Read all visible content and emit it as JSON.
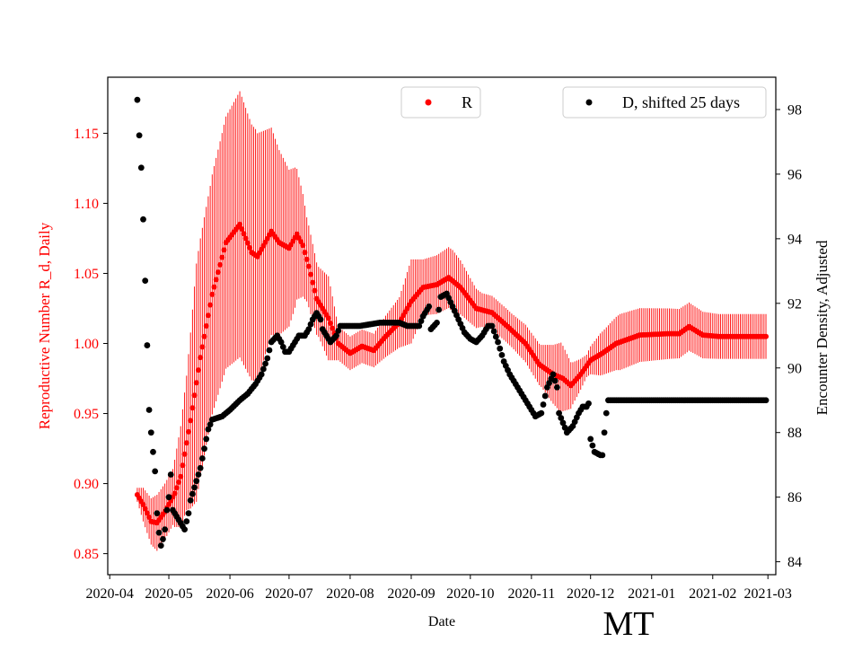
{
  "chart_data": {
    "type": "scatter",
    "state_label": "MT",
    "xlabel": "Date",
    "ylabel_left": "Reproductive Number R_d, Daily",
    "ylabel_right": "Encounter Density, Adjusted",
    "x_range": [
      "2020-03-31",
      "2021-03-05"
    ],
    "ylim_left": [
      0.835,
      1.19
    ],
    "ylim_right": [
      83.6,
      99.0
    ],
    "x_ticks": [
      "2020-04",
      "2020-05",
      "2020-06",
      "2020-07",
      "2020-08",
      "2020-09",
      "2020-10",
      "2020-11",
      "2020-12",
      "2021-01",
      "2021-02",
      "2021-03"
    ],
    "y_ticks_left": [
      "0.85",
      "0.90",
      "0.95",
      "1.00",
      "1.05",
      "1.10",
      "1.15"
    ],
    "y_ticks_right": [
      "84",
      "86",
      "88",
      "90",
      "92",
      "94",
      "96",
      "98"
    ],
    "legend": [
      {
        "label": "R",
        "color": "#ff0000",
        "location": "top-center"
      },
      {
        "label": "D, shifted 25 days",
        "color": "#000000",
        "location": "top-right"
      }
    ],
    "colors": {
      "R": "#ff0000",
      "D": "#000000"
    },
    "series": [
      {
        "name": "R",
        "axis": "left",
        "start_date": "2020-04-15",
        "end_date": "2021-02-28",
        "knots": [
          [
            0,
            0.892
          ],
          [
            3,
            0.885
          ],
          [
            7,
            0.873
          ],
          [
            10,
            0.872
          ],
          [
            14,
            0.88
          ],
          [
            19,
            0.893
          ],
          [
            22,
            0.905
          ],
          [
            27,
            0.945
          ],
          [
            32,
            0.99
          ],
          [
            38,
            1.035
          ],
          [
            45,
            1.072
          ],
          [
            52,
            1.085
          ],
          [
            58,
            1.065
          ],
          [
            61,
            1.062
          ],
          [
            68,
            1.08
          ],
          [
            72,
            1.072
          ],
          [
            77,
            1.068
          ],
          [
            81,
            1.078
          ],
          [
            84,
            1.07
          ],
          [
            87,
            1.055
          ],
          [
            91,
            1.032
          ],
          [
            97,
            1.018
          ],
          [
            102,
            1.0
          ],
          [
            108,
            0.993
          ],
          [
            114,
            0.998
          ],
          [
            120,
            0.995
          ],
          [
            126,
            1.005
          ],
          [
            133,
            1.015
          ],
          [
            139,
            1.03
          ],
          [
            145,
            1.04
          ],
          [
            152,
            1.042
          ],
          [
            158,
            1.047
          ],
          [
            164,
            1.04
          ],
          [
            172,
            1.025
          ],
          [
            180,
            1.022
          ],
          [
            188,
            1.012
          ],
          [
            197,
            1.0
          ],
          [
            204,
            0.985
          ],
          [
            211,
            0.978
          ],
          [
            216,
            0.975
          ],
          [
            220,
            0.97
          ],
          [
            225,
            0.978
          ],
          [
            230,
            0.988
          ],
          [
            236,
            0.993
          ],
          [
            243,
            1.0
          ],
          [
            255,
            1.006
          ],
          [
            270,
            1.007
          ],
          [
            275,
            1.007
          ],
          [
            280,
            1.012
          ],
          [
            287,
            1.006
          ],
          [
            295,
            1.005
          ]
        ],
        "error_knots": [
          [
            0,
            0.005
          ],
          [
            3,
            0.012
          ],
          [
            10,
            0.02
          ],
          [
            18,
            0.02
          ],
          [
            25,
            0.048
          ],
          [
            30,
            0.085
          ],
          [
            37,
            0.085
          ],
          [
            45,
            0.09
          ],
          [
            52,
            0.095
          ],
          [
            60,
            0.09
          ],
          [
            70,
            0.07
          ],
          [
            80,
            0.05
          ],
          [
            86,
            0.03
          ],
          [
            92,
            0.025
          ],
          [
            97,
            0.03
          ],
          [
            102,
            0.012
          ],
          [
            120,
            0.012
          ],
          [
            133,
            0.018
          ],
          [
            139,
            0.03
          ],
          [
            145,
            0.02
          ],
          [
            160,
            0.022
          ],
          [
            175,
            0.012
          ],
          [
            190,
            0.012
          ],
          [
            205,
            0.015
          ],
          [
            215,
            0.025
          ],
          [
            221,
            0.015
          ],
          [
            228,
            0.008
          ],
          [
            235,
            0.015
          ],
          [
            245,
            0.02
          ],
          [
            295,
            0.016
          ]
        ]
      },
      {
        "name": "D, shifted 25 days",
        "axis": "right",
        "start_date": "2020-04-15",
        "end_date": "2021-02-28",
        "knots": [
          [
            0,
            98.3
          ],
          [
            1,
            97.2
          ],
          [
            2,
            96.2
          ],
          [
            3,
            94.6
          ],
          [
            4,
            92.7
          ],
          [
            5,
            90.7
          ],
          [
            6,
            88.7
          ],
          [
            7,
            88.0
          ],
          [
            8,
            87.4
          ],
          [
            9,
            86.8
          ],
          [
            10,
            85.5
          ],
          [
            11,
            84.9
          ],
          [
            12,
            84.5
          ],
          [
            13,
            84.7
          ],
          [
            14,
            85.0
          ],
          [
            15,
            85.6
          ],
          [
            16,
            86.0
          ],
          [
            17,
            86.7
          ],
          [
            18,
            85.6
          ],
          [
            20,
            85.4
          ],
          [
            22,
            85.2
          ],
          [
            24,
            85.0
          ],
          [
            26,
            85.5
          ],
          [
            27,
            85.9
          ],
          [
            30,
            86.5
          ],
          [
            32,
            86.9
          ],
          [
            34,
            87.5
          ],
          [
            36,
            88.1
          ],
          [
            38,
            88.4
          ],
          [
            43,
            88.5
          ],
          [
            47,
            88.7
          ],
          [
            52,
            89.0
          ],
          [
            56,
            89.2
          ],
          [
            60,
            89.5
          ],
          [
            63,
            89.8
          ],
          [
            66,
            90.3
          ],
          [
            68,
            90.8
          ],
          [
            71,
            91.0
          ],
          [
            73,
            90.8
          ],
          [
            75,
            90.5
          ],
          [
            77,
            90.5
          ],
          [
            79,
            90.7
          ],
          [
            82,
            91.0
          ],
          [
            85,
            91.0
          ],
          [
            87,
            91.2
          ],
          [
            89,
            91.5
          ],
          [
            91,
            91.7
          ],
          [
            93,
            91.5
          ],
          [
            94,
            91.2
          ],
          [
            96,
            91.0
          ],
          [
            98,
            90.8
          ],
          [
            101,
            91.0
          ],
          [
            103,
            91.3
          ],
          [
            113,
            91.3
          ],
          [
            123,
            91.4
          ],
          [
            133,
            91.4
          ],
          [
            137,
            91.3
          ],
          [
            141,
            91.3
          ],
          [
            143,
            91.3
          ],
          [
            145,
            91.6
          ],
          [
            148,
            91.9
          ],
          [
            149,
            91.2
          ],
          [
            152,
            91.4
          ],
          [
            154,
            92.2
          ],
          [
            157,
            92.3
          ],
          [
            160,
            91.9
          ],
          [
            163,
            91.5
          ],
          [
            166,
            91.1
          ],
          [
            169,
            90.9
          ],
          [
            172,
            90.8
          ],
          [
            175,
            91.0
          ],
          [
            178,
            91.3
          ],
          [
            180,
            91.3
          ],
          [
            183,
            90.8
          ],
          [
            186,
            90.2
          ],
          [
            189,
            89.8
          ],
          [
            192,
            89.5
          ],
          [
            195,
            89.2
          ],
          [
            199,
            88.8
          ],
          [
            202,
            88.5
          ],
          [
            205,
            88.6
          ],
          [
            208,
            89.4
          ],
          [
            211,
            89.8
          ],
          [
            213,
            89.4
          ],
          [
            214,
            88.6
          ],
          [
            216,
            88.3
          ],
          [
            218,
            88.0
          ],
          [
            221,
            88.2
          ],
          [
            224,
            88.6
          ],
          [
            226,
            88.8
          ],
          [
            228,
            88.8
          ],
          [
            229,
            88.9
          ],
          [
            230,
            87.8
          ],
          [
            232,
            87.4
          ],
          [
            235,
            87.3
          ],
          [
            236,
            87.3
          ],
          [
            237,
            88.0
          ],
          [
            238,
            88.6
          ],
          [
            239,
            89.0
          ],
          [
            295,
            89.0
          ]
        ]
      }
    ]
  }
}
